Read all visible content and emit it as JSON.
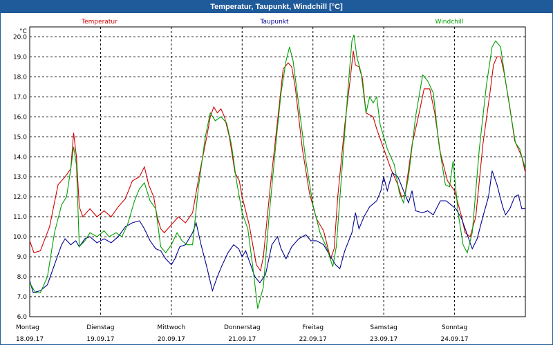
{
  "window": {
    "title": "Temperatur, Taupunkt, Windchill [°C]"
  },
  "chart_data": {
    "type": "line",
    "title": "Temperatur, Taupunkt, Windchill [°C]",
    "ylabel": "°C",
    "ylim": [
      6.0,
      20.5
    ],
    "yticks": [
      6.0,
      7.0,
      8.0,
      9.0,
      10.0,
      11.0,
      12.0,
      13.0,
      14.0,
      15.0,
      16.0,
      17.0,
      18.0,
      19.0,
      20.0
    ],
    "xlim": [
      0,
      7
    ],
    "grid": true,
    "legend_placement": "top",
    "day_labels": [
      {
        "day": "Montag",
        "date": "18.09.17"
      },
      {
        "day": "Dienstag",
        "date": "19.09.17"
      },
      {
        "day": "Mittwoch",
        "date": "20.09.17"
      },
      {
        "day": "Donnerstag",
        "date": "21.09.17"
      },
      {
        "day": "Freitag",
        "date": "22.09.17"
      },
      {
        "day": "Samstag",
        "date": "23.09.17"
      },
      {
        "day": "Sonntag",
        "date": "24.09.17"
      }
    ],
    "series": [
      {
        "name": "Temperatur",
        "color": "#d00000",
        "points": [
          [
            0,
            9.8
          ],
          [
            0.06,
            9.2
          ],
          [
            0.15,
            9.3
          ],
          [
            0.28,
            10.5
          ],
          [
            0.4,
            12.6
          ],
          [
            0.5,
            13.0
          ],
          [
            0.58,
            13.4
          ],
          [
            0.62,
            15.2
          ],
          [
            0.66,
            14.0
          ],
          [
            0.7,
            11.5
          ],
          [
            0.75,
            11.0
          ],
          [
            0.85,
            11.4
          ],
          [
            0.95,
            11.0
          ],
          [
            1.05,
            11.3
          ],
          [
            1.15,
            11.0
          ],
          [
            1.25,
            11.5
          ],
          [
            1.35,
            11.9
          ],
          [
            1.45,
            12.8
          ],
          [
            1.55,
            13.0
          ],
          [
            1.62,
            13.5
          ],
          [
            1.68,
            12.6
          ],
          [
            1.75,
            12.0
          ],
          [
            1.8,
            11.0
          ],
          [
            1.85,
            10.4
          ],
          [
            1.9,
            10.2
          ],
          [
            2.0,
            10.6
          ],
          [
            2.1,
            11.0
          ],
          [
            2.2,
            10.7
          ],
          [
            2.3,
            11.2
          ],
          [
            2.4,
            13.2
          ],
          [
            2.5,
            15.0
          ],
          [
            2.55,
            16.0
          ],
          [
            2.6,
            16.5
          ],
          [
            2.65,
            16.2
          ],
          [
            2.7,
            16.4
          ],
          [
            2.75,
            16.0
          ],
          [
            2.82,
            15.0
          ],
          [
            2.9,
            13.2
          ],
          [
            2.96,
            12.8
          ],
          [
            3.0,
            12.0
          ],
          [
            3.1,
            10.6
          ],
          [
            3.2,
            8.6
          ],
          [
            3.26,
            8.3
          ],
          [
            3.3,
            9.0
          ],
          [
            3.4,
            12.6
          ],
          [
            3.5,
            15.8
          ],
          [
            3.58,
            18.4
          ],
          [
            3.65,
            18.7
          ],
          [
            3.7,
            18.5
          ],
          [
            3.75,
            17.5
          ],
          [
            3.85,
            14.4
          ],
          [
            3.95,
            12.2
          ],
          [
            4.05,
            10.9
          ],
          [
            4.15,
            10.3
          ],
          [
            4.25,
            8.9
          ],
          [
            4.3,
            9.4
          ],
          [
            4.35,
            12.0
          ],
          [
            4.45,
            15.6
          ],
          [
            4.53,
            18.0
          ],
          [
            4.57,
            19.3
          ],
          [
            4.6,
            18.6
          ],
          [
            4.65,
            18.5
          ],
          [
            4.7,
            17.9
          ],
          [
            4.75,
            16.2
          ],
          [
            4.85,
            16.0
          ],
          [
            4.9,
            15.4
          ],
          [
            5.0,
            14.4
          ],
          [
            5.1,
            13.4
          ],
          [
            5.2,
            12.6
          ],
          [
            5.25,
            12.0
          ],
          [
            5.3,
            12.1
          ],
          [
            5.4,
            14.6
          ],
          [
            5.5,
            16.2
          ],
          [
            5.57,
            17.4
          ],
          [
            5.65,
            17.4
          ],
          [
            5.72,
            16.2
          ],
          [
            5.8,
            14.2
          ],
          [
            5.9,
            12.8
          ],
          [
            6.0,
            12.3
          ],
          [
            6.1,
            11.0
          ],
          [
            6.15,
            10.2
          ],
          [
            6.22,
            10.0
          ],
          [
            6.3,
            11.0
          ],
          [
            6.4,
            14.6
          ],
          [
            6.5,
            17.2
          ],
          [
            6.55,
            18.6
          ],
          [
            6.6,
            19.0
          ],
          [
            6.65,
            19.0
          ],
          [
            6.7,
            18.2
          ],
          [
            6.78,
            16.5
          ],
          [
            6.85,
            14.8
          ],
          [
            6.9,
            14.4
          ],
          [
            6.95,
            14.0
          ],
          [
            7.0,
            13.2
          ]
        ]
      },
      {
        "name": "Taupunkt",
        "color": "#000090",
        "points": [
          [
            0,
            7.8
          ],
          [
            0.05,
            7.2
          ],
          [
            0.15,
            7.3
          ],
          [
            0.25,
            7.6
          ],
          [
            0.35,
            8.6
          ],
          [
            0.45,
            9.6
          ],
          [
            0.5,
            9.9
          ],
          [
            0.58,
            9.6
          ],
          [
            0.65,
            9.8
          ],
          [
            0.7,
            9.5
          ],
          [
            0.78,
            9.9
          ],
          [
            0.85,
            10.0
          ],
          [
            0.95,
            9.7
          ],
          [
            1.05,
            9.9
          ],
          [
            1.15,
            9.7
          ],
          [
            1.25,
            10.0
          ],
          [
            1.35,
            10.5
          ],
          [
            1.45,
            10.7
          ],
          [
            1.55,
            10.8
          ],
          [
            1.62,
            10.4
          ],
          [
            1.7,
            9.8
          ],
          [
            1.78,
            9.4
          ],
          [
            1.85,
            9.3
          ],
          [
            1.92,
            8.9
          ],
          [
            2.0,
            8.6
          ],
          [
            2.05,
            8.9
          ],
          [
            2.12,
            9.5
          ],
          [
            2.2,
            9.6
          ],
          [
            2.3,
            10.2
          ],
          [
            2.35,
            10.7
          ],
          [
            2.42,
            9.6
          ],
          [
            2.5,
            8.5
          ],
          [
            2.58,
            7.3
          ],
          [
            2.65,
            8.0
          ],
          [
            2.72,
            8.6
          ],
          [
            2.8,
            9.2
          ],
          [
            2.88,
            9.6
          ],
          [
            2.95,
            9.4
          ],
          [
            3.0,
            9.0
          ],
          [
            3.05,
            9.3
          ],
          [
            3.1,
            8.8
          ],
          [
            3.18,
            8.0
          ],
          [
            3.25,
            7.7
          ],
          [
            3.33,
            8.1
          ],
          [
            3.42,
            9.6
          ],
          [
            3.5,
            10.0
          ],
          [
            3.55,
            9.4
          ],
          [
            3.62,
            8.9
          ],
          [
            3.7,
            9.5
          ],
          [
            3.8,
            9.9
          ],
          [
            3.9,
            10.1
          ],
          [
            3.97,
            9.8
          ],
          [
            4.05,
            9.8
          ],
          [
            4.15,
            9.6
          ],
          [
            4.25,
            9.0
          ],
          [
            4.32,
            8.6
          ],
          [
            4.38,
            8.4
          ],
          [
            4.45,
            9.3
          ],
          [
            4.55,
            10.2
          ],
          [
            4.6,
            11.2
          ],
          [
            4.65,
            10.4
          ],
          [
            4.72,
            11.0
          ],
          [
            4.8,
            11.5
          ],
          [
            4.9,
            11.8
          ],
          [
            4.96,
            12.3
          ],
          [
            5.0,
            13.0
          ],
          [
            5.05,
            12.3
          ],
          [
            5.12,
            13.2
          ],
          [
            5.2,
            13.0
          ],
          [
            5.28,
            12.3
          ],
          [
            5.35,
            11.7
          ],
          [
            5.4,
            12.3
          ],
          [
            5.45,
            11.3
          ],
          [
            5.55,
            11.2
          ],
          [
            5.62,
            11.3
          ],
          [
            5.7,
            11.1
          ],
          [
            5.8,
            11.8
          ],
          [
            5.88,
            11.8
          ],
          [
            5.95,
            11.6
          ],
          [
            6.02,
            11.4
          ],
          [
            6.1,
            10.9
          ],
          [
            6.18,
            10.1
          ],
          [
            6.25,
            9.4
          ],
          [
            6.32,
            9.9
          ],
          [
            6.4,
            11.0
          ],
          [
            6.48,
            12.0
          ],
          [
            6.53,
            13.3
          ],
          [
            6.6,
            12.6
          ],
          [
            6.68,
            11.5
          ],
          [
            6.72,
            11.1
          ],
          [
            6.78,
            11.4
          ],
          [
            6.85,
            12.0
          ],
          [
            6.9,
            12.1
          ],
          [
            6.95,
            11.4
          ],
          [
            7.0,
            11.4
          ]
        ]
      },
      {
        "name": "Windchill",
        "color": "#00a000",
        "points": [
          [
            0,
            7.7
          ],
          [
            0.08,
            7.2
          ],
          [
            0.15,
            7.2
          ],
          [
            0.25,
            8.0
          ],
          [
            0.35,
            10.2
          ],
          [
            0.45,
            11.6
          ],
          [
            0.52,
            12.0
          ],
          [
            0.58,
            13.4
          ],
          [
            0.62,
            14.5
          ],
          [
            0.66,
            13.6
          ],
          [
            0.7,
            9.5
          ],
          [
            0.78,
            9.8
          ],
          [
            0.85,
            10.2
          ],
          [
            0.95,
            10.0
          ],
          [
            1.05,
            10.3
          ],
          [
            1.12,
            10.0
          ],
          [
            1.22,
            10.2
          ],
          [
            1.3,
            10.0
          ],
          [
            1.38,
            10.6
          ],
          [
            1.48,
            11.8
          ],
          [
            1.55,
            12.4
          ],
          [
            1.62,
            12.7
          ],
          [
            1.7,
            11.8
          ],
          [
            1.78,
            11.4
          ],
          [
            1.85,
            9.5
          ],
          [
            1.92,
            9.2
          ],
          [
            2.0,
            9.6
          ],
          [
            2.08,
            10.2
          ],
          [
            2.15,
            9.8
          ],
          [
            2.22,
            9.6
          ],
          [
            2.3,
            9.6
          ],
          [
            2.38,
            12.4
          ],
          [
            2.48,
            15.0
          ],
          [
            2.55,
            16.2
          ],
          [
            2.62,
            15.8
          ],
          [
            2.7,
            16.0
          ],
          [
            2.78,
            15.7
          ],
          [
            2.85,
            14.6
          ],
          [
            2.92,
            12.8
          ],
          [
            3.0,
            11.2
          ],
          [
            3.08,
            10.4
          ],
          [
            3.15,
            8.5
          ],
          [
            3.22,
            6.4
          ],
          [
            3.3,
            7.5
          ],
          [
            3.38,
            11.0
          ],
          [
            3.48,
            14.8
          ],
          [
            3.55,
            17.2
          ],
          [
            3.62,
            18.8
          ],
          [
            3.67,
            19.5
          ],
          [
            3.72,
            18.8
          ],
          [
            3.8,
            16.6
          ],
          [
            3.9,
            13.8
          ],
          [
            4.0,
            11.6
          ],
          [
            4.1,
            10.2
          ],
          [
            4.2,
            9.4
          ],
          [
            4.28,
            8.5
          ],
          [
            4.33,
            9.5
          ],
          [
            4.42,
            13.8
          ],
          [
            4.5,
            17.6
          ],
          [
            4.55,
            19.8
          ],
          [
            4.58,
            20.1
          ],
          [
            4.62,
            19.0
          ],
          [
            4.68,
            18.2
          ],
          [
            4.75,
            16.2
          ],
          [
            4.8,
            17.0
          ],
          [
            4.85,
            16.7
          ],
          [
            4.9,
            17.0
          ],
          [
            4.95,
            15.6
          ],
          [
            5.05,
            14.4
          ],
          [
            5.15,
            13.6
          ],
          [
            5.22,
            12.2
          ],
          [
            5.28,
            11.7
          ],
          [
            5.35,
            13.0
          ],
          [
            5.45,
            16.0
          ],
          [
            5.55,
            18.1
          ],
          [
            5.62,
            17.8
          ],
          [
            5.7,
            17.2
          ],
          [
            5.78,
            14.6
          ],
          [
            5.87,
            12.6
          ],
          [
            5.93,
            12.5
          ],
          [
            5.98,
            13.8
          ],
          [
            6.05,
            11.2
          ],
          [
            6.12,
            9.6
          ],
          [
            6.18,
            9.2
          ],
          [
            6.25,
            10.2
          ],
          [
            6.35,
            14.4
          ],
          [
            6.45,
            17.6
          ],
          [
            6.53,
            19.5
          ],
          [
            6.58,
            19.8
          ],
          [
            6.65,
            19.5
          ],
          [
            6.72,
            17.8
          ],
          [
            6.8,
            16.0
          ],
          [
            6.86,
            14.7
          ],
          [
            6.92,
            14.4
          ],
          [
            7.0,
            13.4
          ]
        ]
      }
    ]
  }
}
